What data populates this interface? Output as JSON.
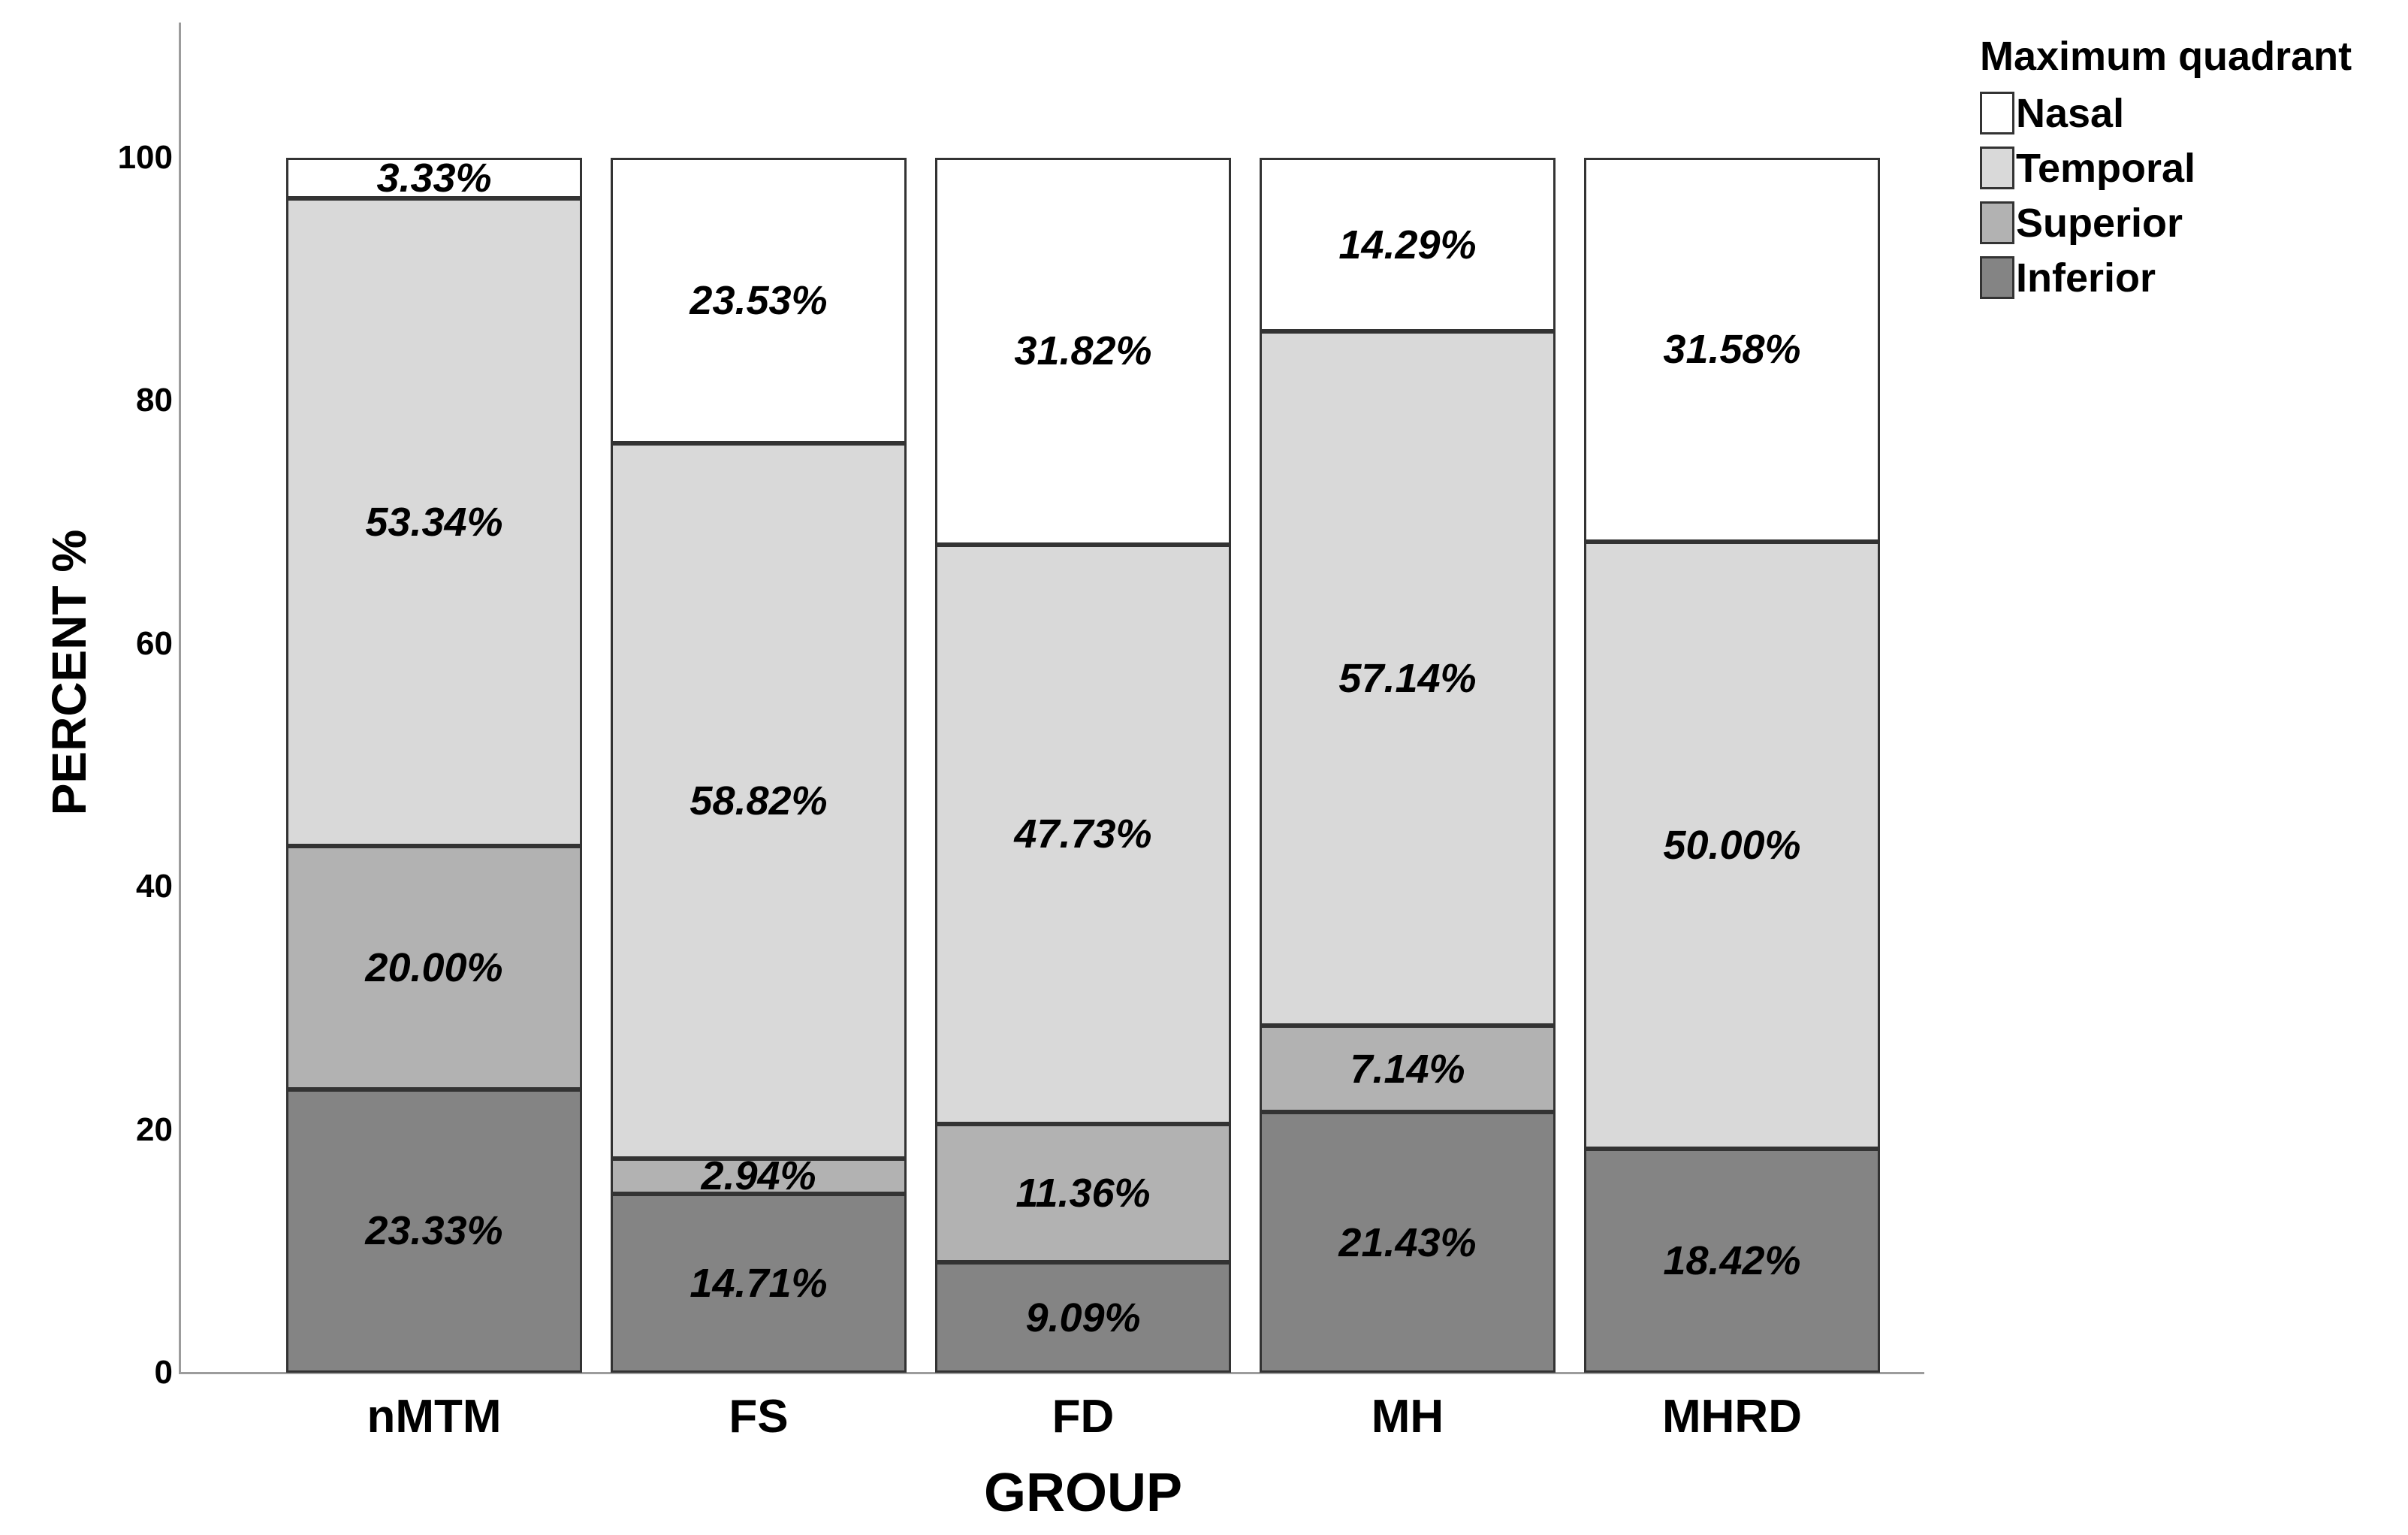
{
  "chart_data": {
    "type": "bar",
    "stacked": true,
    "orientation": "vertical",
    "title": "",
    "xlabel": "GROUP",
    "ylabel": "PERCENT %",
    "ylim": [
      0,
      100
    ],
    "yticks": [
      0,
      20,
      40,
      60,
      80,
      100
    ],
    "grid": false,
    "categories": [
      "nMTM",
      "FS",
      "FD",
      "MH",
      "MHRD"
    ],
    "series": [
      {
        "name": "Inferior",
        "color": "#848484",
        "values": [
          23.33,
          14.71,
          9.09,
          21.43,
          18.42
        ]
      },
      {
        "name": "Superior",
        "color": "#b2b2b2",
        "values": [
          20.0,
          2.94,
          11.36,
          7.14,
          0
        ]
      },
      {
        "name": "Temporal",
        "color": "#d9d9d9",
        "values": [
          53.34,
          58.82,
          47.73,
          57.14,
          50.0
        ]
      },
      {
        "name": "Nasal",
        "color": "#ffffff",
        "values": [
          3.33,
          23.53,
          31.82,
          14.29,
          31.58
        ]
      }
    ],
    "bar_labels": {
      "format": "two-decimal-percent",
      "style": "bold-italic",
      "color": "#000000",
      "shown_for_zero_values": false
    },
    "legend": {
      "title": "Maximum quadrant",
      "position": "top-right",
      "entries": [
        {
          "label": "Nasal",
          "color": "#ffffff"
        },
        {
          "label": "Temporal",
          "color": "#d9d9d9"
        },
        {
          "label": "Superior",
          "color": "#b2b2b2"
        },
        {
          "label": "Inferior",
          "color": "#848484"
        }
      ]
    },
    "axis_color": "#9c9c9c",
    "segment_border_color": "#333333"
  }
}
